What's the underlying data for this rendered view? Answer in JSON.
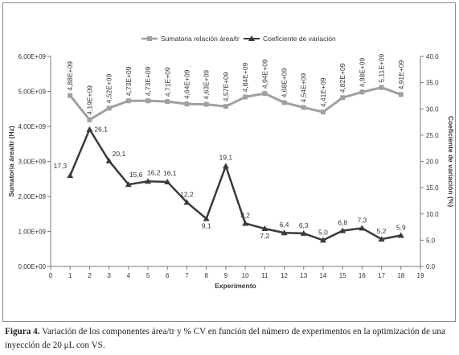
{
  "chart_data": {
    "type": "line",
    "x_label": "Experimento",
    "y_left_label": "Sumatoria área/tr (Hz)",
    "y_right_label": "Coeficiente de variación (%)",
    "x_ticks": [
      "0",
      "1",
      "2",
      "3",
      "4",
      "5",
      "6",
      "7",
      "8",
      "9",
      "10",
      "11",
      "12",
      "13",
      "14",
      "15",
      "16",
      "17",
      "18",
      "19"
    ],
    "y_left_ticks": [
      "0,00E+00",
      "1,00E+09",
      "2,00E+09",
      "3,00E+09",
      "4,00E+09",
      "5,00E+09",
      "6,00E+09"
    ],
    "y_right_ticks": [
      "0.0",
      "5.0",
      "10.0",
      "15.0",
      "20.0",
      "25.0",
      "30.0",
      "35.0",
      "40.0"
    ],
    "xlim": [
      0,
      19
    ],
    "y_left_lim": [
      0,
      6000000000
    ],
    "y_right_lim": [
      0,
      40
    ],
    "legend_position": "top",
    "grid": false,
    "series": [
      {
        "name": "Sumatoria relación área/tr",
        "axis": "left",
        "color": "#a0a0a0",
        "marker": "square",
        "x": [
          1,
          2,
          3,
          4,
          5,
          6,
          7,
          8,
          9,
          10,
          11,
          12,
          13,
          14,
          15,
          16,
          17,
          18
        ],
        "values": [
          4880000000,
          4190000000,
          4520000000,
          4730000000,
          4730000000,
          4710000000,
          4640000000,
          4630000000,
          4570000000,
          4840000000,
          4940000000,
          4680000000,
          4540000000,
          4410000000,
          4820000000,
          4980000000,
          5110000000,
          4910000000
        ],
        "labels": [
          "4,88E+09",
          "4,19E+09",
          "4,52E+09",
          "4,73E+09",
          "4,73E+09",
          "4,71E+09",
          "4,64E+09",
          "4,63E+09",
          "4,57E+09",
          "4,84E+09",
          "4,94E+09",
          "4,68E+09",
          "4,54E+09",
          "4,41E+09",
          "4,82E+09",
          "4,98E+09",
          "5,11E+09",
          "4,91E+09"
        ]
      },
      {
        "name": "Coeficiente de variación",
        "axis": "right",
        "color": "#3a3a3a",
        "marker": "triangle",
        "x": [
          1,
          2,
          3,
          4,
          5,
          6,
          7,
          8,
          9,
          10,
          11,
          12,
          13,
          14,
          15,
          16,
          17,
          18
        ],
        "values": [
          17.3,
          26.1,
          20.1,
          15.6,
          16.2,
          16.1,
          12.2,
          9.1,
          19.1,
          8.2,
          7.2,
          6.4,
          6.3,
          5.0,
          6.8,
          7.3,
          5.2,
          5.9
        ],
        "labels": [
          "17,3",
          "26,1",
          "20,1",
          "15,6",
          "16,2",
          "16,1",
          "12,2",
          "9,1",
          "19,1",
          "8,2",
          "7,2",
          "6,4",
          "6,3",
          "5,0",
          "6,8",
          "7,3",
          "5,2",
          "5,9"
        ]
      }
    ]
  },
  "caption": {
    "label": "Figura 4.",
    "text": " Variación de los componentes área/tr y % CV en función del número de experimentos en la optimización de una inyección de 20 μL con VS."
  }
}
